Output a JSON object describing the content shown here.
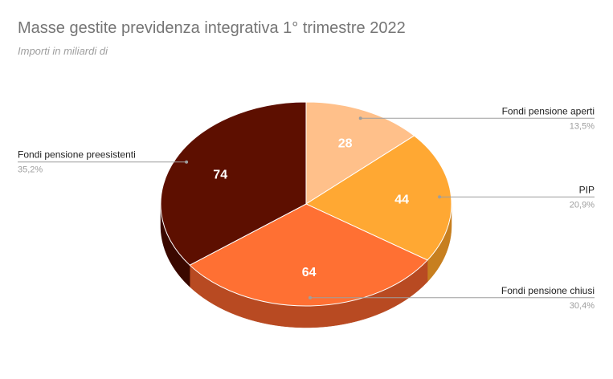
{
  "title": "Masse gestite previdenza integrativa 1° trimestre 2022",
  "subtitle": "Importi in miliardi di",
  "chart_data": {
    "type": "pie",
    "title": "Masse gestite previdenza integrativa 1° trimestre 2022",
    "subtitle": "Importi in miliardi di",
    "slices": [
      {
        "label": "Fondi pensione aperti",
        "value": 28,
        "value_label": "28",
        "percent_label": "13,5%",
        "color": "#ffc08a",
        "side_color": "#d4955d"
      },
      {
        "label": "PIP",
        "value": 44,
        "value_label": "44",
        "percent_label": "20,9%",
        "color": "#ffa833",
        "side_color": "#c77f1f"
      },
      {
        "label": "Fondi pensione chiusi",
        "value": 64,
        "value_label": "64",
        "percent_label": "30,4%",
        "color": "#ff7033",
        "side_color": "#b84a22"
      },
      {
        "label": "Fondi pensione preesistenti",
        "value": 74,
        "value_label": "74",
        "percent_label": "35,2%",
        "color": "#5d0f00",
        "side_color": "#3a0800"
      }
    ]
  }
}
